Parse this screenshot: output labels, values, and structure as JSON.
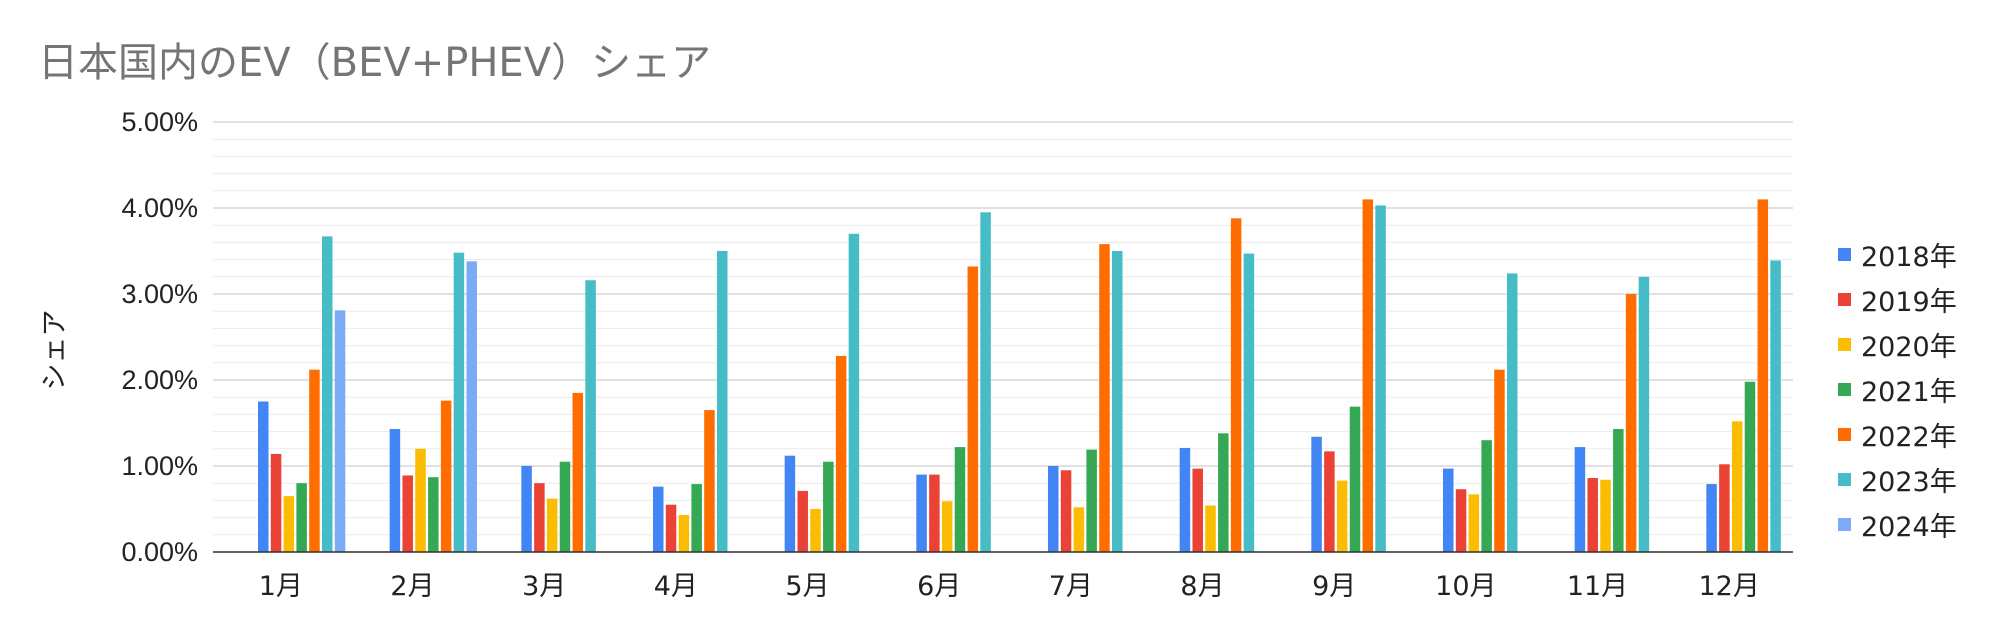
{
  "chart_data": {
    "type": "bar",
    "title": "日本国内のEV（BEV+PHEV）シェア",
    "xlabel": "",
    "ylabel": "シェア",
    "ylim": [
      0,
      0.05
    ],
    "y_ticks": [
      "0.00%",
      "1.00%",
      "2.00%",
      "3.00%",
      "4.00%",
      "5.00%"
    ],
    "grid": true,
    "legend_position": "right",
    "categories": [
      "1月",
      "2月",
      "3月",
      "4月",
      "5月",
      "6月",
      "7月",
      "8月",
      "9月",
      "10月",
      "11月",
      "12月"
    ],
    "series": [
      {
        "name": "2018年",
        "color": "#4285F4",
        "values": [
          0.0175,
          0.0143,
          0.01,
          0.0076,
          0.0112,
          0.009,
          0.01,
          0.0121,
          0.0134,
          0.0097,
          0.0122,
          0.0079
        ]
      },
      {
        "name": "2019年",
        "color": "#EA4335",
        "values": [
          0.0114,
          0.0089,
          0.008,
          0.0055,
          0.0071,
          0.009,
          0.0095,
          0.0097,
          0.0117,
          0.0073,
          0.0086,
          0.0102
        ]
      },
      {
        "name": "2020年",
        "color": "#FBBC04",
        "values": [
          0.0065,
          0.012,
          0.0062,
          0.0043,
          0.005,
          0.0059,
          0.0052,
          0.0054,
          0.0083,
          0.0067,
          0.0084,
          0.0152
        ]
      },
      {
        "name": "2021年",
        "color": "#34A853",
        "values": [
          0.008,
          0.0087,
          0.0105,
          0.0079,
          0.0105,
          0.0122,
          0.0119,
          0.0138,
          0.0169,
          0.013,
          0.0143,
          0.0198
        ]
      },
      {
        "name": "2022年",
        "color": "#FF6D01",
        "values": [
          0.0212,
          0.0176,
          0.0185,
          0.0165,
          0.0228,
          0.0332,
          0.0358,
          0.0388,
          0.041,
          0.0212,
          0.03,
          0.041
        ]
      },
      {
        "name": "2023年",
        "color": "#46BDC6",
        "values": [
          0.0367,
          0.0348,
          0.0316,
          0.035,
          0.037,
          0.0395,
          0.035,
          0.0347,
          0.0403,
          0.0324,
          0.032,
          0.0339
        ]
      },
      {
        "name": "2024年",
        "color": "#7BAAF7",
        "values": [
          0.0281,
          0.0338,
          null,
          null,
          null,
          null,
          null,
          null,
          null,
          null,
          null,
          null
        ]
      }
    ]
  }
}
